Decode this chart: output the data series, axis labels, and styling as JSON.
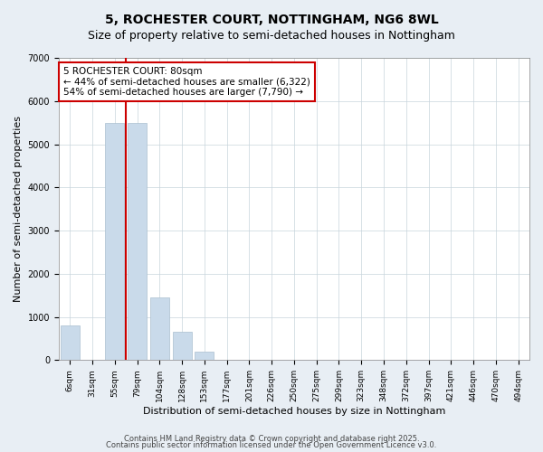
{
  "title": "5, ROCHESTER COURT, NOTTINGHAM, NG6 8WL",
  "subtitle": "Size of property relative to semi-detached houses in Nottingham",
  "xlabel": "Distribution of semi-detached houses by size in Nottingham",
  "ylabel": "Number of semi-detached properties",
  "categories": [
    "6sqm",
    "31sqm",
    "55sqm",
    "79sqm",
    "104sqm",
    "128sqm",
    "153sqm",
    "177sqm",
    "201sqm",
    "226sqm",
    "250sqm",
    "275sqm",
    "299sqm",
    "323sqm",
    "348sqm",
    "372sqm",
    "397sqm",
    "421sqm",
    "446sqm",
    "470sqm",
    "494sqm"
  ],
  "values": [
    800,
    0,
    5500,
    5500,
    1450,
    650,
    200,
    0,
    0,
    0,
    0,
    0,
    0,
    0,
    0,
    0,
    0,
    0,
    0,
    0,
    0
  ],
  "bar_color": "#c9daea",
  "bar_edge_color": "#aabfcf",
  "annotation_text": "5 ROCHESTER COURT: 80sqm\n← 44% of semi-detached houses are smaller (6,322)\n54% of semi-detached houses are larger (7,790) →",
  "annotation_box_color": "#ffffff",
  "annotation_box_edge_color": "#cc0000",
  "vline_color": "#cc0000",
  "vline_x": 2.5,
  "ylim": [
    0,
    7000
  ],
  "yticks": [
    0,
    1000,
    2000,
    3000,
    4000,
    5000,
    6000,
    7000
  ],
  "title_fontsize": 10,
  "subtitle_fontsize": 9,
  "xlabel_fontsize": 8,
  "ylabel_fontsize": 8,
  "tick_fontsize": 7,
  "annotation_fontsize": 7.5,
  "footer_text1": "Contains HM Land Registry data © Crown copyright and database right 2025.",
  "footer_text2": "Contains public sector information licensed under the Open Government Licence v3.0.",
  "background_color": "#e8eef4",
  "plot_bg_color": "#ffffff"
}
